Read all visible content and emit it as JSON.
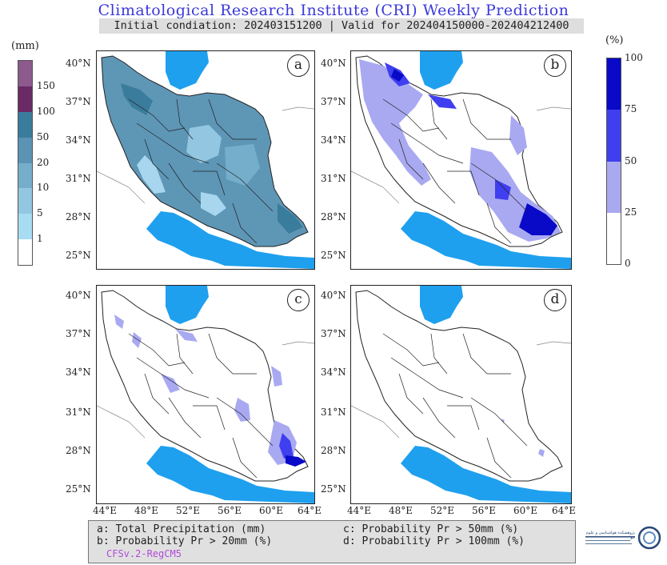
{
  "header": {
    "title": "Climatological Research Institute (CRI) Weekly Prediction",
    "subtitle": "Initial condiation: 202403151200 | Valid for 202404150000-202404212400"
  },
  "legend_precip": {
    "unit": "(mm)",
    "ticks": [
      "150",
      "100",
      "50",
      "20",
      "10",
      "5",
      "1"
    ],
    "colors": [
      "#ffffff",
      "#a8dcf2",
      "#93c6e0",
      "#75aecb",
      "#5b93b5",
      "#3a7c9c",
      "#6a2a66",
      "#8c5a8c"
    ]
  },
  "legend_prob": {
    "unit": "(%)",
    "ticks": [
      "100",
      "75",
      "50",
      "25",
      "0"
    ],
    "colors": [
      "#ffffff",
      "#a9a9f2",
      "#3f3ff0",
      "#0909c8"
    ]
  },
  "panels": [
    {
      "id": "a",
      "label": "a"
    },
    {
      "id": "b",
      "label": "b"
    },
    {
      "id": "c",
      "label": "c"
    },
    {
      "id": "d",
      "label": "d"
    }
  ],
  "axes": {
    "lat_labels": [
      "40°N",
      "37°N",
      "34°N",
      "31°N",
      "28°N",
      "25°N"
    ],
    "lon_labels": [
      "44°E",
      "48°E",
      "52°E",
      "56°E",
      "60°E",
      "64°E"
    ]
  },
  "colors": {
    "water": "#1fa0ee",
    "land_outline": "#222222",
    "title_blue": "#3a39d8"
  },
  "footer": {
    "a": "a: Total Precipitation (mm)",
    "b": "b: Probability Pr > 20mm (%)",
    "c": "c: Probability Pr > 50mm (%)",
    "d": "d: Probability Pr > 100mm (%)",
    "model": "CFSv.2-RegCM5"
  },
  "logo": {
    "text": "پژوهشکده هواشناسی و علوم جو"
  }
}
